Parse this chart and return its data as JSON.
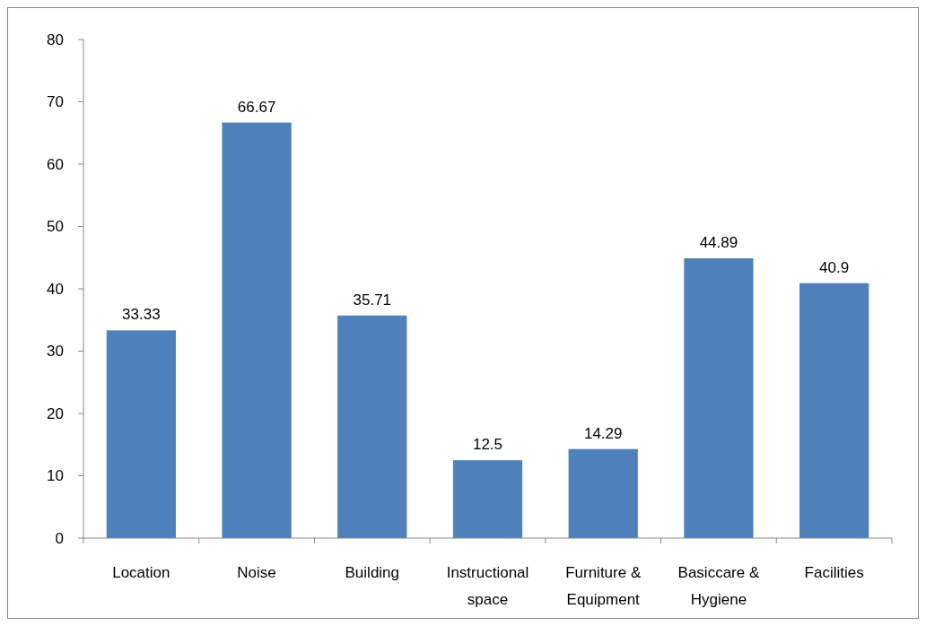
{
  "chart_data": {
    "type": "bar",
    "categories": [
      "Location",
      "Noise",
      "Building",
      "Instructional space",
      "Furniture & Equipment",
      "Basiccare & Hygiene",
      "Facilities"
    ],
    "values": [
      33.33,
      66.67,
      35.71,
      12.5,
      14.29,
      44.89,
      40.9
    ],
    "color": "#4f81bd",
    "ylim": [
      0,
      80
    ],
    "yticks": [
      0,
      10,
      20,
      30,
      40,
      50,
      60,
      70,
      80
    ],
    "data_labels": true
  }
}
